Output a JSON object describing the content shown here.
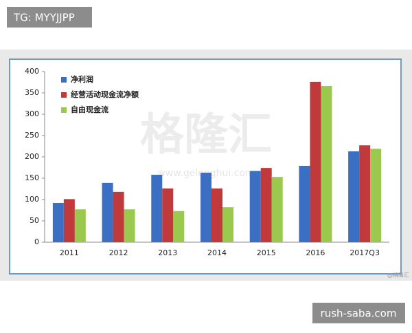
{
  "chart_data": {
    "type": "bar",
    "categories": [
      "2011",
      "2012",
      "2013",
      "2014",
      "2015",
      "2016",
      "2017Q3"
    ],
    "series": [
      {
        "name": "净利润",
        "color": "#3a6fc4",
        "values": [
          92,
          139,
          158,
          163,
          167,
          179,
          213
        ]
      },
      {
        "name": "经营活动现金流净额",
        "color": "#c0393b",
        "values": [
          101,
          118,
          126,
          126,
          174,
          376,
          227
        ]
      },
      {
        "name": "自由现金流",
        "color": "#9bc94d",
        "values": [
          77,
          77,
          73,
          82,
          153,
          366,
          219
        ]
      }
    ],
    "ylim": [
      0,
      400
    ],
    "yticks": [
      0,
      50,
      100,
      150,
      200,
      250,
      300,
      350,
      400
    ],
    "grid": false,
    "legend": "top-left"
  },
  "overlays": {
    "top_label": "TG: MYYJJPP",
    "bottom_label": "rush-saba.com",
    "watermark": "格隆汇",
    "watermark_url": "www.gelonghui.com",
    "credit": "@格隆汇"
  }
}
